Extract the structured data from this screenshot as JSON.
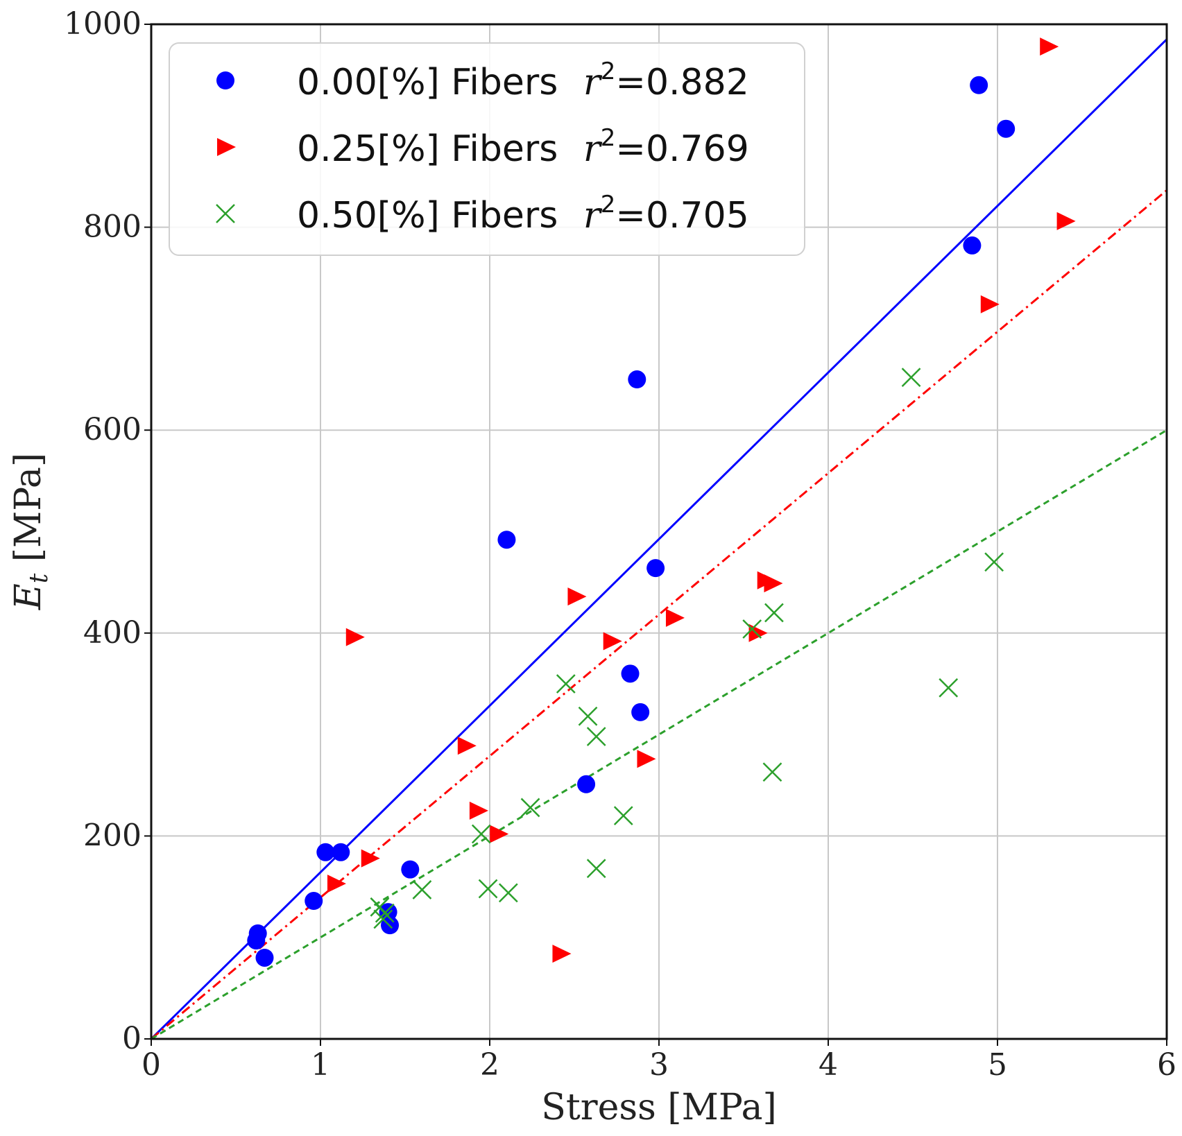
{
  "chart_data": {
    "type": "scatter",
    "xlabel": "Stress [MPa]",
    "ylabel_main": "E",
    "ylabel_sub": "t",
    "ylabel_rest": " [MPa]",
    "xlim": [
      0,
      6
    ],
    "ylim": [
      0,
      1000
    ],
    "xticks": [
      0,
      1,
      2,
      3,
      4,
      5,
      6
    ],
    "yticks": [
      0,
      200,
      400,
      600,
      800,
      1000
    ],
    "grid": true,
    "legend_position": "top-left",
    "series": [
      {
        "name": "0.00[%] Fibers",
        "label": "0.00[%] Fibers",
        "r2_prefix": "r",
        "r2_exp": "2",
        "r2_value": "=0.882",
        "marker": "circle",
        "color": "#0000ff",
        "fit_slope": 164.2,
        "fit_style": "solid",
        "points": [
          [
            0.62,
            97
          ],
          [
            0.63,
            104
          ],
          [
            0.67,
            80
          ],
          [
            0.96,
            136
          ],
          [
            1.03,
            184
          ],
          [
            1.12,
            184
          ],
          [
            1.4,
            125
          ],
          [
            1.41,
            112
          ],
          [
            1.53,
            167
          ],
          [
            2.1,
            492
          ],
          [
            2.57,
            251
          ],
          [
            2.83,
            360
          ],
          [
            2.87,
            650
          ],
          [
            2.89,
            322
          ],
          [
            2.98,
            464
          ],
          [
            4.85,
            782
          ],
          [
            4.89,
            940
          ],
          [
            5.05,
            897
          ]
        ]
      },
      {
        "name": "0.25[%] Fibers",
        "label": "0.25[%] Fibers",
        "r2_prefix": "r",
        "r2_exp": "2",
        "r2_value": "=0.769",
        "marker": "triangle-right",
        "color": "#ff0000",
        "fit_slope": 139.4,
        "fit_style": "dashdot",
        "points": [
          [
            1.09,
            153
          ],
          [
            1.2,
            396
          ],
          [
            1.29,
            178
          ],
          [
            1.86,
            289
          ],
          [
            1.93,
            225
          ],
          [
            2.05,
            202
          ],
          [
            2.42,
            84
          ],
          [
            2.51,
            436
          ],
          [
            2.72,
            392
          ],
          [
            2.92,
            276
          ],
          [
            3.09,
            415
          ],
          [
            3.58,
            400
          ],
          [
            3.63,
            452
          ],
          [
            3.67,
            449
          ],
          [
            4.95,
            724
          ],
          [
            5.3,
            978
          ],
          [
            5.4,
            806
          ]
        ]
      },
      {
        "name": "0.50[%] Fibers",
        "label": "0.50[%] Fibers",
        "r2_prefix": "r",
        "r2_exp": "2",
        "r2_value": "=0.705",
        "marker": "x",
        "color": "#2ca02c",
        "fit_slope": 100.0,
        "fit_style": "dashed",
        "points": [
          [
            1.35,
            130
          ],
          [
            1.37,
            118
          ],
          [
            1.38,
            124
          ],
          [
            1.6,
            147
          ],
          [
            1.95,
            202
          ],
          [
            1.99,
            148
          ],
          [
            2.11,
            144
          ],
          [
            2.24,
            228
          ],
          [
            2.45,
            350
          ],
          [
            2.58,
            318
          ],
          [
            2.63,
            298
          ],
          [
            2.63,
            168
          ],
          [
            2.79,
            220
          ],
          [
            3.55,
            404
          ],
          [
            3.67,
            263
          ],
          [
            3.68,
            420
          ],
          [
            4.49,
            652
          ],
          [
            4.71,
            346
          ],
          [
            4.98,
            470
          ]
        ]
      }
    ]
  }
}
